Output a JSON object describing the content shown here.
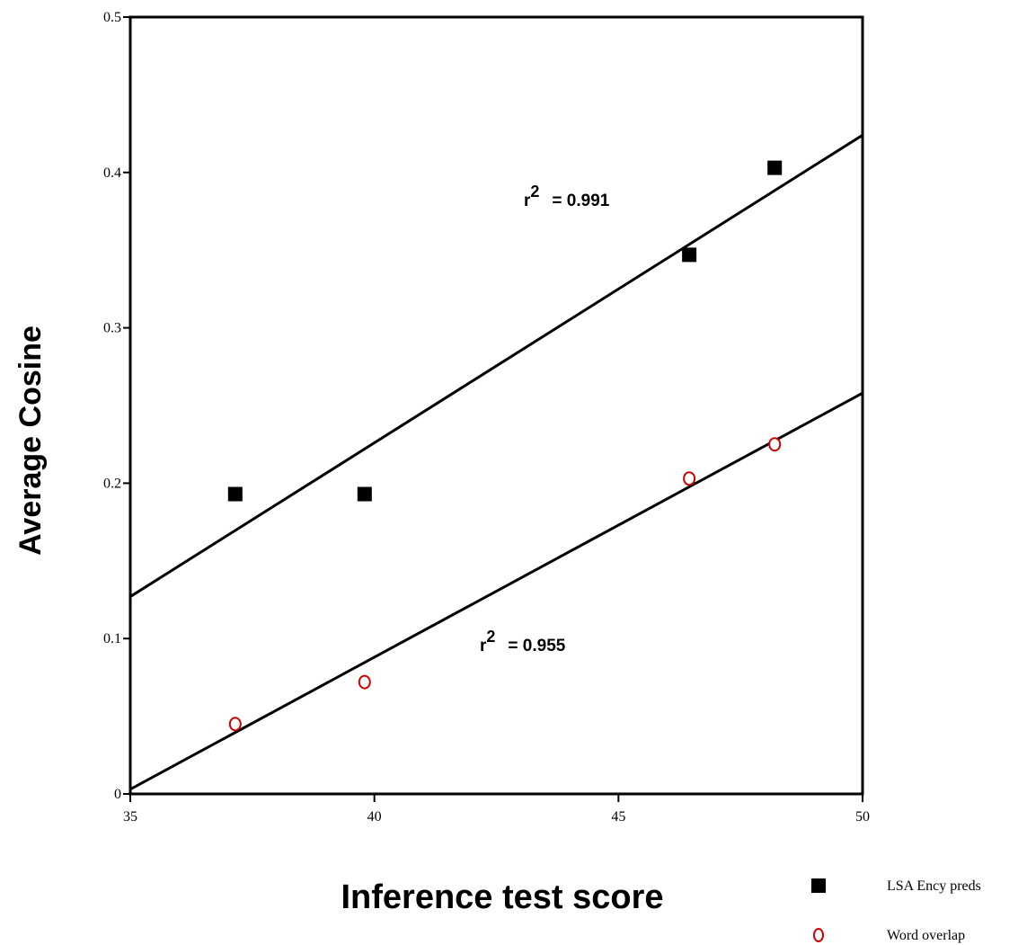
{
  "chart_data": {
    "type": "scatter",
    "title": "",
    "xlabel": "Inference test score",
    "ylabel": "Average Cosine",
    "xlim": [
      35,
      50
    ],
    "ylim": [
      0,
      0.5
    ],
    "xticks": [
      "35",
      "40",
      "45",
      "50"
    ],
    "yticks": [
      "0",
      "0.1",
      "0.2",
      "0.3",
      "0.4",
      "0.5"
    ],
    "grid": false,
    "legend_position": "bottom-right",
    "series": [
      {
        "name": "LSA Ency preds",
        "marker": "filled-square",
        "color": "#000000",
        "x": [
          37.15,
          39.8,
          46.45,
          48.2
        ],
        "y": [
          0.193,
          0.193,
          0.347,
          0.403
        ],
        "fit": {
          "x": [
            35,
            50
          ],
          "y": [
            0.127,
            0.424
          ]
        },
        "annotation": {
          "prefix": "r",
          "sup": "2",
          "rest": "= 0.991"
        }
      },
      {
        "name": "Word overlap",
        "marker": "open-circle",
        "color": "#cc0000",
        "x": [
          37.15,
          39.8,
          46.45,
          48.2
        ],
        "y": [
          0.045,
          0.072,
          0.203,
          0.225
        ],
        "fit": {
          "x": [
            35,
            50
          ],
          "y": [
            0.003,
            0.258
          ]
        },
        "annotation": {
          "prefix": "r",
          "sup": "2",
          "rest": "= 0.955"
        }
      }
    ]
  }
}
